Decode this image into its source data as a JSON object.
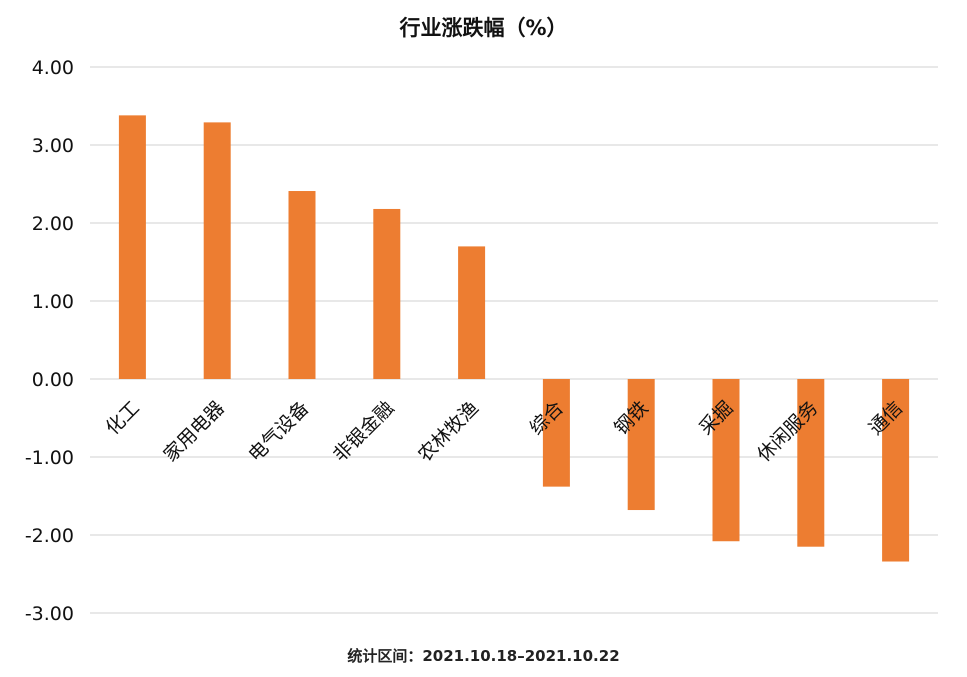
{
  "chart_data": {
    "type": "bar",
    "title": "行业涨跌幅（%）",
    "footer": "统计区间：2021.10.18–2021.10.22",
    "categories": [
      "化工",
      "家用电器",
      "电气设备",
      "非银金融",
      "农林牧渔",
      "综合",
      "钢铁",
      "采掘",
      "休闲服务",
      "通信"
    ],
    "values": [
      3.38,
      3.29,
      2.41,
      2.18,
      1.7,
      -1.38,
      -1.68,
      -2.08,
      -2.15,
      -2.34
    ],
    "ylim": [
      -3.0,
      4.0
    ],
    "yticks": [
      "4.00",
      "3.00",
      "2.00",
      "1.00",
      "0.00",
      "-1.00",
      "-2.00",
      "-3.00"
    ],
    "xlabel": "",
    "ylabel": "",
    "grid": true,
    "legend": "none",
    "bar_color": "#ED7D31",
    "grid_color": "#D9D9D9"
  }
}
